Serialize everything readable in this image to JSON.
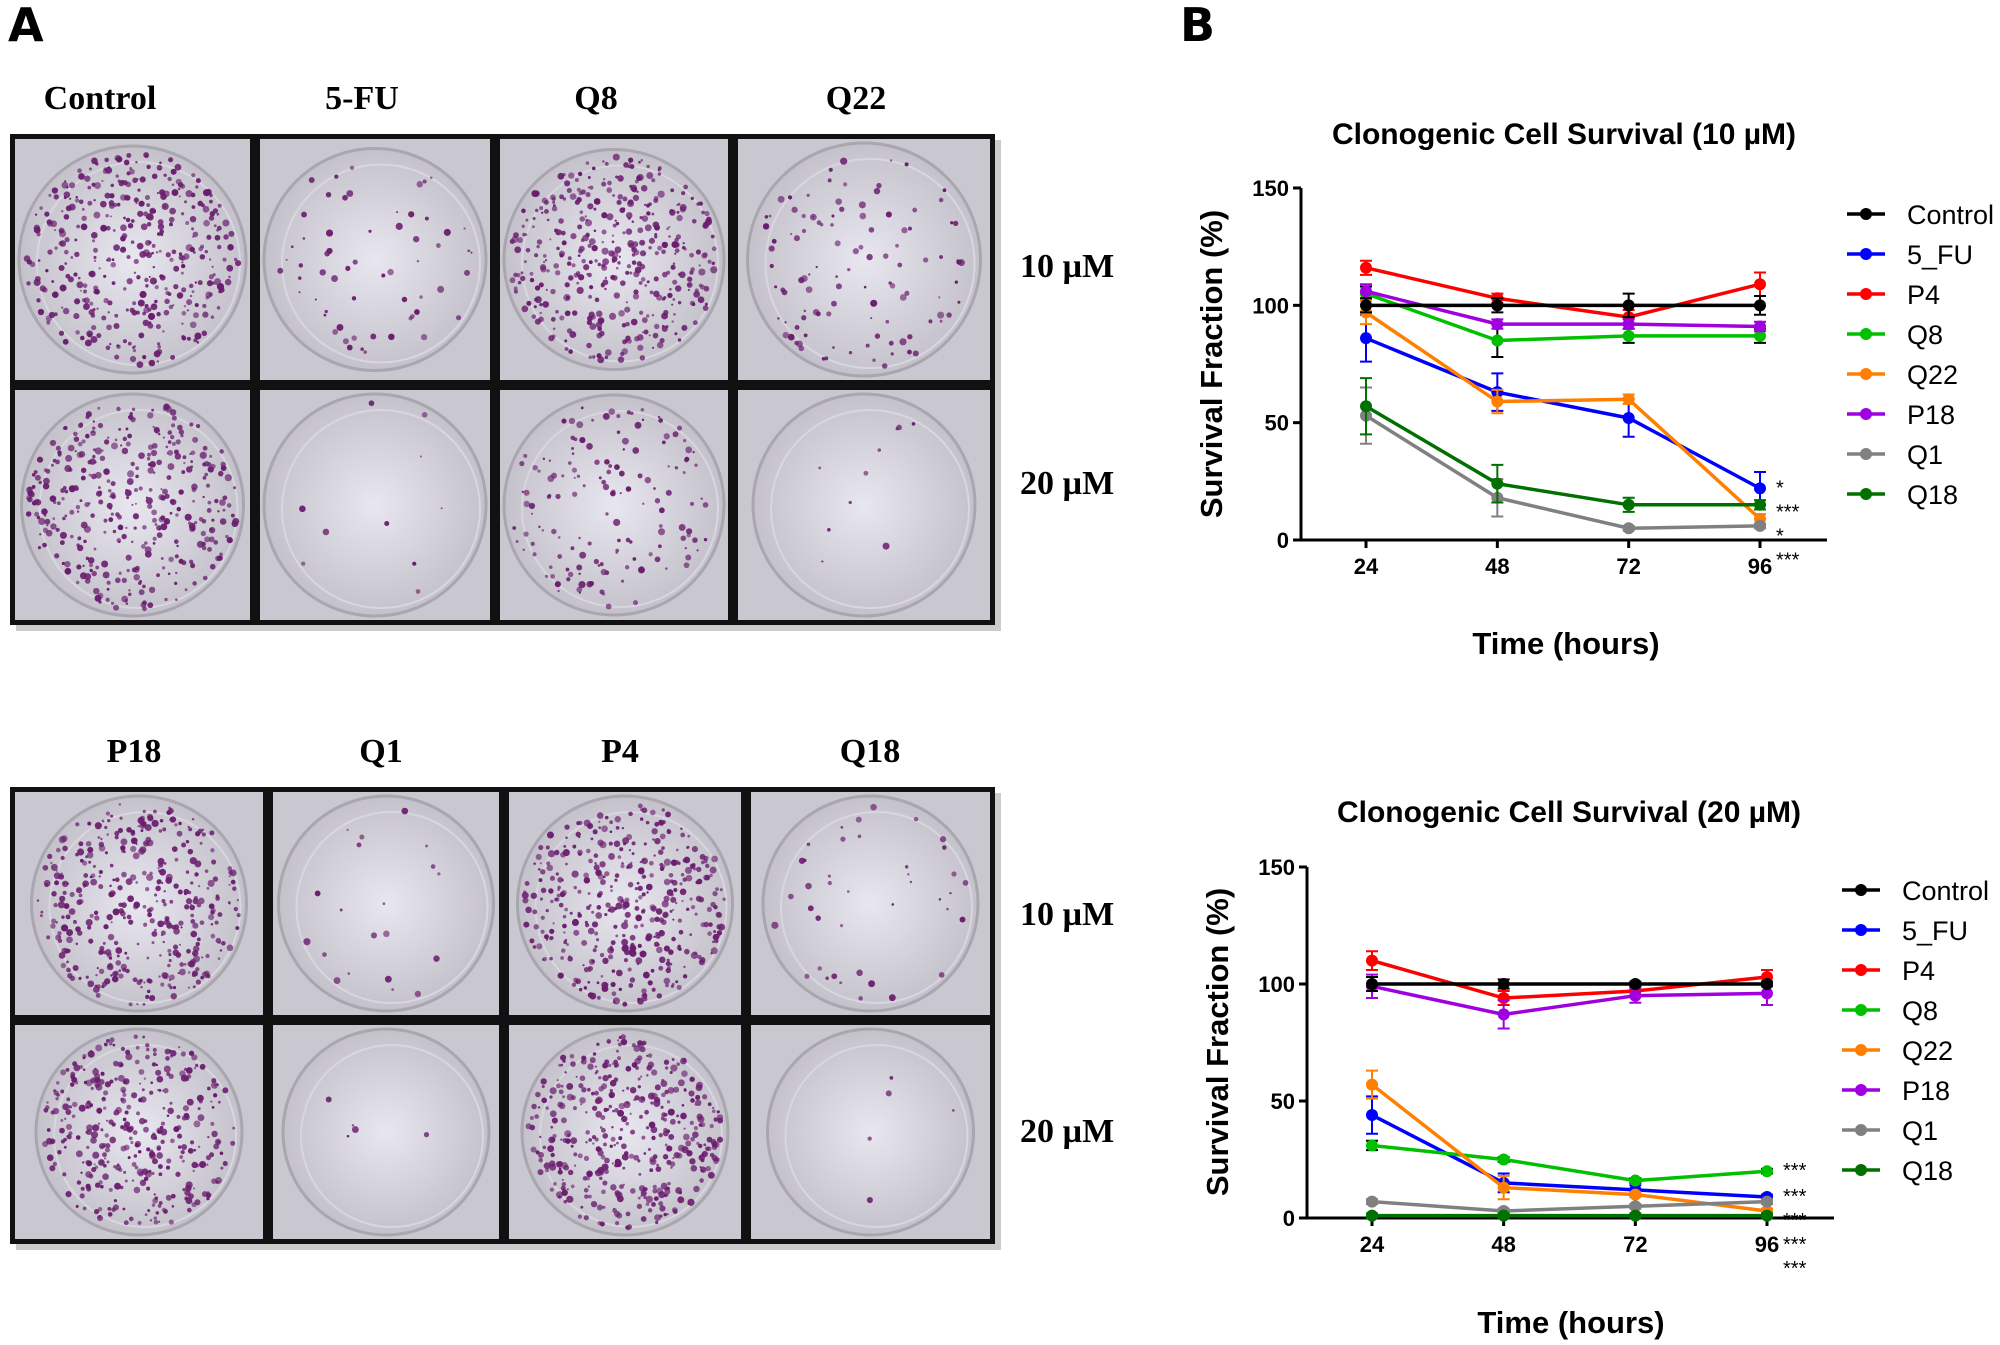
{
  "panel_a": {
    "letter": "A",
    "top_grid": {
      "columns": [
        "Control",
        "5-FU",
        "Q8",
        "Q22"
      ],
      "rows": [
        "10 µM",
        "20 µM"
      ]
    },
    "bottom_grid": {
      "columns": [
        "P18",
        "Q1",
        "P4",
        "Q18"
      ],
      "rows": [
        "10 µM",
        "20 µM"
      ]
    },
    "plate_colony_color": "#6a1d6e"
  },
  "panel_b": {
    "letter": "B"
  },
  "chart_data": [
    {
      "type": "line",
      "title": "Clonogenic Cell Survival (10 µM)",
      "xlabel": "Time (hours)",
      "ylabel": "Survival Fraction (%)",
      "x": [
        24,
        48,
        72,
        96
      ],
      "ylim": [
        0,
        150
      ],
      "yticks": [
        0,
        50,
        100,
        150
      ],
      "grid": false,
      "legend": "right",
      "series": [
        {
          "name": "Control",
          "color": "#000000",
          "values": [
            100,
            100,
            100,
            100
          ],
          "errors": [
            3,
            3,
            5,
            4
          ],
          "significance": ""
        },
        {
          "name": "5_FU",
          "color": "#0000ff",
          "values": [
            86,
            63,
            52,
            22
          ],
          "errors": [
            10,
            8,
            8,
            7
          ],
          "significance": "*"
        },
        {
          "name": "P4",
          "color": "#ff0000",
          "values": [
            116,
            103,
            95,
            109
          ],
          "errors": [
            3,
            2,
            3,
            5
          ],
          "significance": ""
        },
        {
          "name": "Q8",
          "color": "#00c000",
          "values": [
            105,
            85,
            87,
            87
          ],
          "errors": [
            3,
            7,
            3,
            3
          ],
          "significance": ""
        },
        {
          "name": "Q22",
          "color": "#ff8000",
          "values": [
            97,
            59,
            60,
            9
          ],
          "errors": [
            5,
            5,
            2,
            2
          ],
          "significance": "*"
        },
        {
          "name": "P18",
          "color": "#a000e0",
          "values": [
            106,
            92,
            92,
            91
          ],
          "errors": [
            3,
            2,
            2,
            2
          ],
          "significance": ""
        },
        {
          "name": "Q1",
          "color": "#808080",
          "values": [
            53,
            18,
            5,
            6
          ],
          "errors": [
            12,
            8,
            1,
            1
          ],
          "significance": "***"
        },
        {
          "name": "Q18",
          "color": "#007000",
          "values": [
            57,
            24,
            15,
            15
          ],
          "errors": [
            12,
            8,
            3,
            2
          ],
          "significance": "***"
        }
      ]
    },
    {
      "type": "line",
      "title": "Clonogenic Cell Survival (20 µM)",
      "xlabel": "Time (hours)",
      "ylabel": "Survival Fraction (%)",
      "x": [
        24,
        48,
        72,
        96
      ],
      "ylim": [
        0,
        150
      ],
      "yticks": [
        0,
        50,
        100,
        150
      ],
      "grid": false,
      "legend": "right",
      "series": [
        {
          "name": "Control",
          "color": "#000000",
          "values": [
            100,
            100,
            100,
            100
          ],
          "errors": [
            3,
            2,
            1,
            1
          ],
          "significance": ""
        },
        {
          "name": "5_FU",
          "color": "#0000ff",
          "values": [
            44,
            15,
            12,
            9
          ],
          "errors": [
            8,
            4,
            2,
            1
          ],
          "significance": "***"
        },
        {
          "name": "P4",
          "color": "#ff0000",
          "values": [
            110,
            94,
            97,
            103
          ],
          "errors": [
            4,
            3,
            2,
            3
          ],
          "significance": ""
        },
        {
          "name": "Q8",
          "color": "#00c000",
          "values": [
            31,
            25,
            16,
            20
          ],
          "errors": [
            2,
            1,
            1,
            1
          ],
          "significance": "***"
        },
        {
          "name": "Q22",
          "color": "#ff8000",
          "values": [
            57,
            13,
            10,
            3
          ],
          "errors": [
            6,
            5,
            1,
            1
          ],
          "significance": "***"
        },
        {
          "name": "P18",
          "color": "#a000e0",
          "values": [
            99,
            87,
            95,
            96
          ],
          "errors": [
            5,
            6,
            3,
            5
          ],
          "significance": ""
        },
        {
          "name": "Q1",
          "color": "#808080",
          "values": [
            7,
            3,
            5,
            7
          ],
          "errors": [
            1,
            1,
            1,
            1
          ],
          "significance": "***"
        },
        {
          "name": "Q18",
          "color": "#007000",
          "values": [
            1,
            1,
            1,
            1
          ],
          "errors": [
            1,
            1,
            1,
            1
          ],
          "significance": "***"
        }
      ]
    }
  ]
}
